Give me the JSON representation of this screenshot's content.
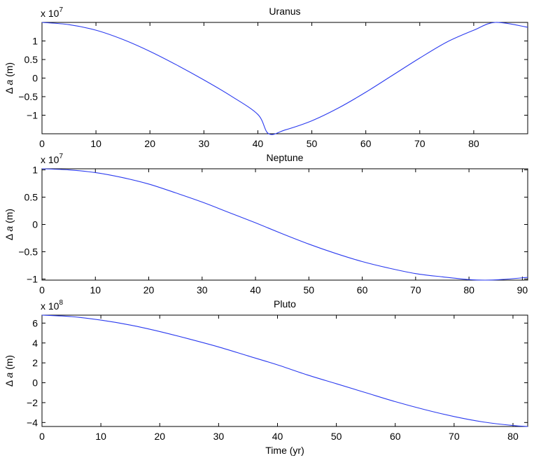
{
  "chart_data": [
    {
      "type": "line",
      "title": "Uranus",
      "xlabel": "",
      "ylabel_symbol": "Δ",
      "ylabel_var": "a",
      "ylabel_unit": "(m)",
      "multiplier_base": "x 10",
      "multiplier_exp": "7",
      "xlim": [
        0,
        90
      ],
      "ylim": [
        -1.5,
        1.5
      ],
      "xticks": [
        0,
        10,
        20,
        30,
        40,
        50,
        60,
        70,
        80
      ],
      "yticks": [
        -1,
        -0.5,
        0,
        0.5,
        1
      ],
      "grid": false,
      "series": [
        {
          "color": "#2b3bef",
          "x": [
            0,
            5,
            10,
            15,
            20,
            25,
            30,
            35,
            40,
            42,
            45,
            50,
            55,
            60,
            65,
            70,
            75,
            80,
            84,
            90
          ],
          "y": [
            1.5,
            1.44,
            1.29,
            1.04,
            0.72,
            0.35,
            -0.05,
            -0.48,
            -0.98,
            -1.5,
            -1.4,
            -1.15,
            -0.8,
            -0.38,
            0.08,
            0.54,
            0.97,
            1.29,
            1.5,
            1.37
          ]
        }
      ]
    },
    {
      "type": "line",
      "title": "Neptune",
      "xlabel": "",
      "ylabel_symbol": "Δ",
      "ylabel_var": "a",
      "ylabel_unit": "(m)",
      "multiplier_base": "x 10",
      "multiplier_exp": "7",
      "xlim": [
        0,
        91
      ],
      "ylim": [
        -1.02,
        1.02
      ],
      "xticks": [
        0,
        10,
        20,
        30,
        40,
        50,
        60,
        70,
        80,
        90
      ],
      "yticks": [
        -1,
        -0.5,
        0,
        0.5,
        1
      ],
      "grid": false,
      "series": [
        {
          "color": "#2b3bef",
          "x": [
            0,
            5,
            10,
            15,
            20,
            25,
            30,
            35,
            40,
            45,
            50,
            55,
            60,
            65,
            70,
            75,
            80,
            83,
            86,
            91
          ],
          "y": [
            1.02,
            1.0,
            0.95,
            0.86,
            0.74,
            0.58,
            0.41,
            0.22,
            0.03,
            -0.17,
            -0.36,
            -0.53,
            -0.68,
            -0.8,
            -0.9,
            -0.96,
            -1.01,
            -1.02,
            -1.01,
            -0.97
          ]
        }
      ]
    },
    {
      "type": "line",
      "title": "Pluto",
      "xlabel": "Time (yr)",
      "ylabel_symbol": "Δ",
      "ylabel_var": "a",
      "ylabel_unit": "(m)",
      "multiplier_base": "x 10",
      "multiplier_exp": "8",
      "xlim": [
        0,
        82.5
      ],
      "ylim": [
        -4.4,
        6.8
      ],
      "xticks": [
        0,
        10,
        20,
        30,
        40,
        50,
        60,
        70,
        80
      ],
      "yticks": [
        -4,
        -2,
        0,
        2,
        4,
        6
      ],
      "grid": false,
      "series": [
        {
          "color": "#2b3bef",
          "x": [
            0,
            5,
            10,
            15,
            20,
            25,
            30,
            35,
            40,
            45,
            50,
            55,
            60,
            65,
            70,
            75,
            80,
            82.5
          ],
          "y": [
            6.8,
            6.65,
            6.3,
            5.8,
            5.15,
            4.4,
            3.6,
            2.7,
            1.8,
            0.8,
            -0.1,
            -1.0,
            -1.9,
            -2.7,
            -3.4,
            -3.95,
            -4.3,
            -4.4
          ]
        }
      ]
    }
  ]
}
